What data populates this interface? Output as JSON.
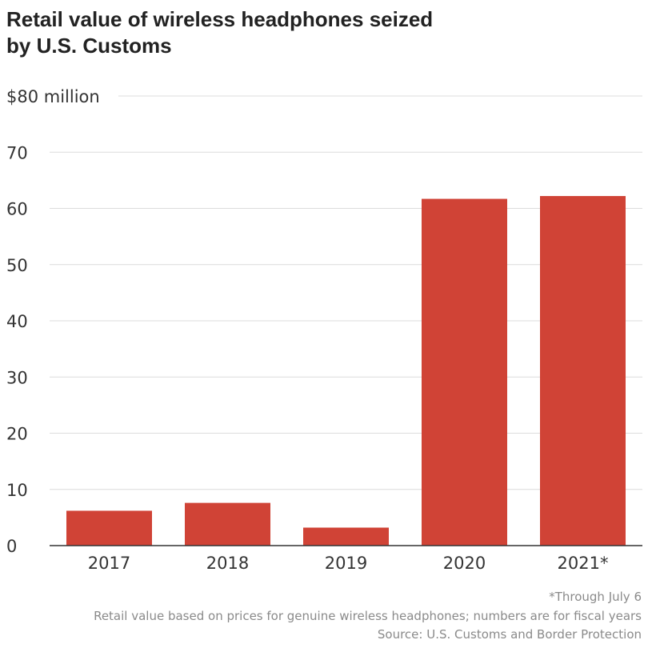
{
  "chart_data": {
    "type": "bar",
    "title_line1": "Retail value of wireless headphones seized",
    "title_line2": "by  U.S. Customs",
    "categories": [
      "2017",
      "2018",
      "2019",
      "2020",
      "2021*"
    ],
    "values": [
      6.2,
      7.6,
      3.2,
      61.7,
      62.2
    ],
    "unit": "$ million",
    "ylim": [
      0,
      80
    ],
    "yticks": [
      0,
      10,
      20,
      30,
      40,
      50,
      60,
      70,
      80
    ],
    "ytick_labels": [
      "0",
      "10",
      "20",
      "30",
      "40",
      "50",
      "60",
      "70",
      "$80 million"
    ],
    "grid": true,
    "bar_color": "#d04336",
    "footnotes": [
      "*Through July 6",
      "Retail value based on prices for genuine wireless headphones; numbers are for fiscal years",
      "Source: U.S. Customs and Border Protection"
    ]
  }
}
